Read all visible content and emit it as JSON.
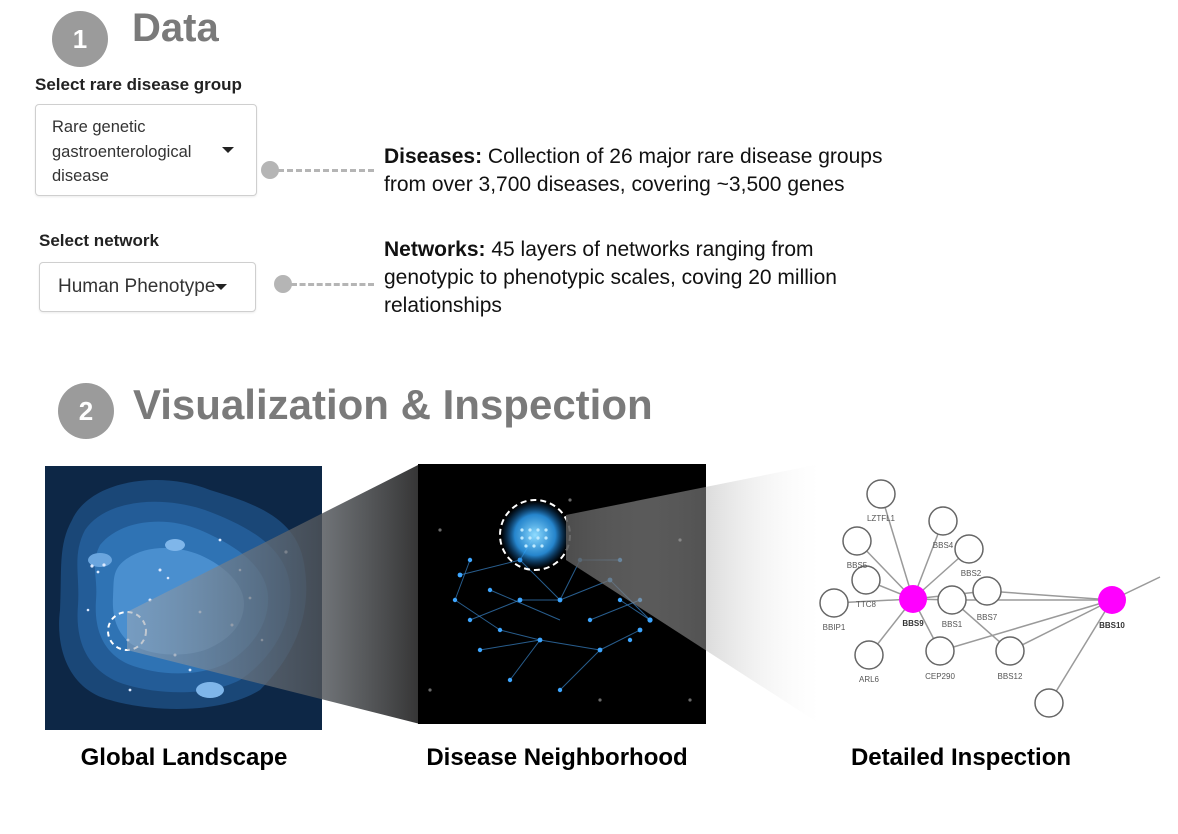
{
  "section1": {
    "number": "1",
    "title": "Data"
  },
  "disease_select": {
    "label": "Select rare disease group",
    "value_lines": [
      "Rare genetic",
      "gastroenterological",
      "disease"
    ]
  },
  "network_select": {
    "label": "Select network",
    "value": "Human Phenotype"
  },
  "diseases_desc": {
    "heading": "Diseases:",
    "line1": " Collection of 26 major rare disease groups",
    "line2": "from over 3,700 diseases, covering ~3,500 genes"
  },
  "networks_desc": {
    "heading": "Networks:",
    "line1": " 45 layers of networks ranging from",
    "line2": "genotypic to phenotypic scales, coving 20 million",
    "line3": "relationships"
  },
  "section2": {
    "number": "2",
    "title": "Visualization & Inspection"
  },
  "panels": {
    "global": "Global Landscape",
    "neighborhood": "Disease Neighborhood",
    "detailed": "Detailed Inspection"
  },
  "gene_nodes": {
    "LZTFL1": "LZTFL1",
    "BBS4": "BBS4",
    "BBS5": "BBS5",
    "BBS2": "BBS2",
    "TTC8": "TTC8",
    "BBIP1": "BBIP1",
    "BBS9": "BBS9",
    "BBS1": "BBS1",
    "BBS7": "BBS7",
    "BBS10": "BBS10",
    "ARL6": "ARL6",
    "CEP290": "CEP290",
    "BBS12": "BBS12"
  },
  "colors": {
    "highlight_node": "#ff00ff",
    "step_circle": "#9b9b9b",
    "step_title": "#7a7a7a"
  }
}
